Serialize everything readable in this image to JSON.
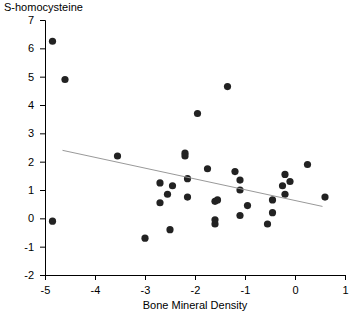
{
  "chart_data": {
    "type": "scatter",
    "x_label": "Bone Mineral Density",
    "y_label": "S-homocysteine",
    "xlim": [
      -5,
      1
    ],
    "xticks": [
      -5,
      -4,
      -3,
      -2,
      -1,
      0,
      1
    ],
    "ylim": [
      -2,
      7
    ],
    "yticks": [
      -2,
      -1,
      0,
      1,
      2,
      3,
      4,
      5,
      6,
      7
    ],
    "grid": false,
    "series": [
      {
        "type": "scatter",
        "marker": "circle",
        "color": "#222222",
        "x": [
          -4.85,
          -4.6,
          -4.85,
          -3.55,
          -3.0,
          -2.7,
          -2.7,
          -2.55,
          -2.45,
          -2.5,
          -2.2,
          -2.2,
          -2.15,
          -2.15,
          -1.95,
          -1.75,
          -1.6,
          -1.55,
          -1.6,
          -1.6,
          -1.35,
          -1.2,
          -1.1,
          -1.1,
          -1.1,
          -0.95,
          -0.55,
          -0.45,
          -0.45,
          -0.25,
          -0.2,
          -0.2,
          -0.1,
          0.25,
          0.6
        ],
        "values": [
          6.25,
          4.9,
          -0.1,
          2.2,
          -0.7,
          1.25,
          0.55,
          0.85,
          1.15,
          -0.4,
          2.3,
          2.2,
          1.4,
          0.75,
          3.7,
          1.75,
          0.6,
          0.65,
          -0.2,
          -0.05,
          4.65,
          1.65,
          1.35,
          1.0,
          0.1,
          0.45,
          -0.2,
          0.2,
          0.65,
          1.15,
          1.55,
          0.85,
          1.3,
          1.9,
          0.75
        ]
      },
      {
        "type": "line",
        "line_style": "solid",
        "color": "#999999",
        "x": [
          -4.65,
          0.55
        ],
        "values": [
          2.4,
          0.42
        ]
      }
    ]
  }
}
